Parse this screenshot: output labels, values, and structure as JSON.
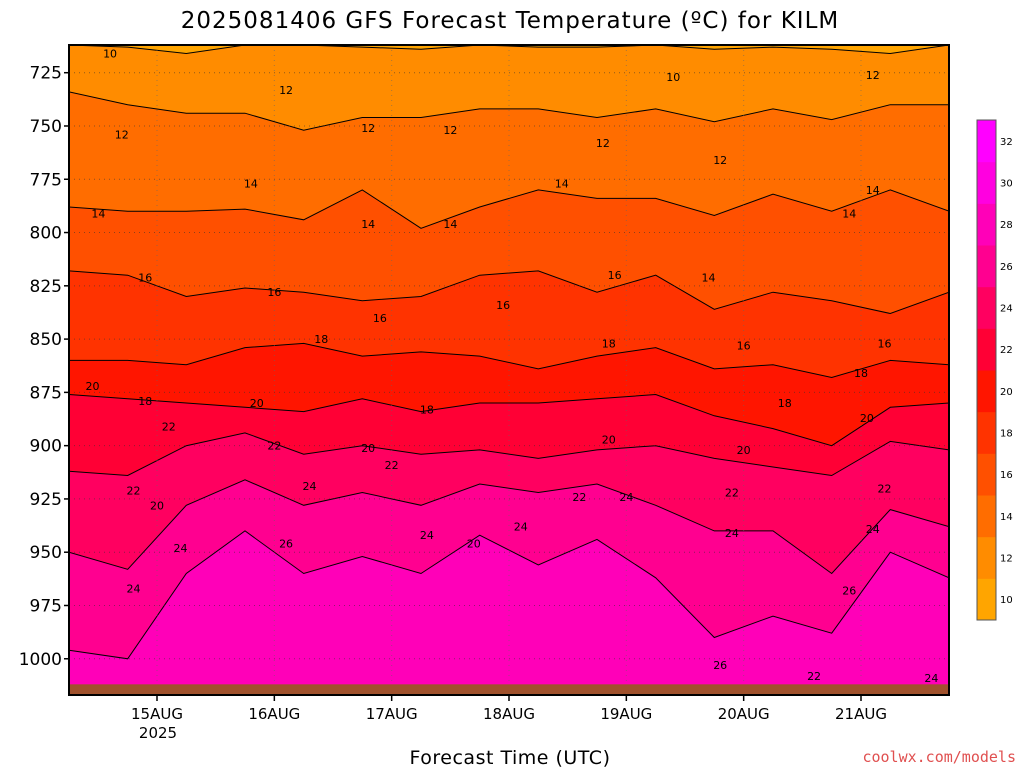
{
  "chart_data": {
    "type": "heatmap",
    "title": "2025081406 GFS Forecast Temperature (ºC) for KILM",
    "xlabel": "Forecast Time (UTC)",
    "ylabel": "",
    "y_axis": {
      "ticks": [
        725,
        750,
        775,
        800,
        825,
        850,
        875,
        900,
        925,
        950,
        975,
        1000
      ],
      "inverted": true,
      "range_hpa": [
        712,
        1017
      ]
    },
    "x_axis": {
      "ticks": [
        "15AUG",
        "16AUG",
        "17AUG",
        "18AUG",
        "19AUG",
        "20AUG",
        "21AUG"
      ],
      "year_label": "2025",
      "range_days": [
        14.25,
        21.75
      ]
    },
    "grid": true,
    "colorbar": {
      "levels": [
        10,
        12,
        14,
        16,
        18,
        20,
        22,
        24,
        26,
        28,
        30,
        32
      ],
      "colors": [
        "#ffa500",
        "#ff8c00",
        "#ff6d00",
        "#ff5000",
        "#ff3300",
        "#ff1500",
        "#ff0035",
        "#ff0060",
        "#ff0090",
        "#ff00b8",
        "#ff00e0",
        "#ff00ff"
      ]
    },
    "isotherms": [
      {
        "value": 10,
        "pressure": [
          712,
          713,
          716,
          712,
          712,
          713,
          714,
          712,
          713,
          713,
          712,
          714,
          713,
          714,
          716,
          712
        ]
      },
      {
        "value": 12,
        "pressure": [
          734,
          740,
          744,
          744,
          752,
          746,
          746,
          742,
          742,
          746,
          742,
          748,
          742,
          747,
          740,
          740
        ]
      },
      {
        "value": 14,
        "pressure": [
          788,
          790,
          790,
          789,
          794,
          780,
          798,
          788,
          780,
          784,
          784,
          792,
          782,
          790,
          780,
          790
        ]
      },
      {
        "value": 16,
        "pressure": [
          818,
          820,
          830,
          826,
          828,
          832,
          830,
          820,
          818,
          828,
          820,
          836,
          828,
          832,
          838,
          828
        ]
      },
      {
        "value": 18,
        "pressure": [
          860,
          860,
          862,
          854,
          852,
          858,
          856,
          858,
          864,
          858,
          854,
          864,
          862,
          868,
          860,
          862
        ]
      },
      {
        "value": 20,
        "pressure": [
          876,
          878,
          880,
          882,
          884,
          878,
          884,
          880,
          880,
          878,
          876,
          886,
          892,
          900,
          882,
          880
        ]
      },
      {
        "value": 22,
        "pressure": [
          912,
          914,
          900,
          894,
          904,
          900,
          904,
          902,
          906,
          902,
          900,
          906,
          910,
          914,
          898,
          902
        ]
      },
      {
        "value": 24,
        "pressure": [
          950,
          958,
          928,
          916,
          928,
          922,
          928,
          918,
          922,
          918,
          928,
          940,
          940,
          960,
          930,
          938
        ]
      },
      {
        "value": 26,
        "pressure": [
          996,
          1000,
          960,
          940,
          960,
          952,
          960,
          942,
          956,
          944,
          962,
          990,
          980,
          988,
          950,
          962
        ]
      }
    ],
    "ground_pressure_hpa": 1012,
    "contour_labels": [
      {
        "text": "10",
        "t": 14.6,
        "p": 716
      },
      {
        "text": "12",
        "t": 14.7,
        "p": 754
      },
      {
        "text": "14",
        "t": 14.5,
        "p": 791
      },
      {
        "text": "16",
        "t": 14.9,
        "p": 821
      },
      {
        "text": "18",
        "t": 14.9,
        "p": 879
      },
      {
        "text": "20",
        "t": 14.45,
        "p": 872
      },
      {
        "text": "22",
        "t": 15.1,
        "p": 891
      },
      {
        "text": "22",
        "t": 14.8,
        "p": 921
      },
      {
        "text": "20",
        "t": 15.0,
        "p": 928
      },
      {
        "text": "24",
        "t": 15.2,
        "p": 948
      },
      {
        "text": "24",
        "t": 14.8,
        "p": 967
      },
      {
        "text": "12",
        "t": 16.1,
        "p": 733
      },
      {
        "text": "14",
        "t": 15.8,
        "p": 777
      },
      {
        "text": "16",
        "t": 16.0,
        "p": 828
      },
      {
        "text": "20",
        "t": 15.85,
        "p": 880
      },
      {
        "text": "22",
        "t": 16.0,
        "p": 900
      },
      {
        "text": "24",
        "t": 16.3,
        "p": 919
      },
      {
        "text": "26",
        "t": 16.1,
        "p": 946
      },
      {
        "text": "18",
        "t": 16.4,
        "p": 850
      },
      {
        "text": "12",
        "t": 16.8,
        "p": 751
      },
      {
        "text": "14",
        "t": 16.8,
        "p": 796
      },
      {
        "text": "16",
        "t": 16.9,
        "p": 840
      },
      {
        "text": "20",
        "t": 16.8,
        "p": 901
      },
      {
        "text": "22",
        "t": 17.0,
        "p": 909
      },
      {
        "text": "24",
        "t": 17.3,
        "p": 942
      },
      {
        "text": "18",
        "t": 17.3,
        "p": 883
      },
      {
        "text": "12",
        "t": 17.5,
        "p": 752
      },
      {
        "text": "14",
        "t": 17.5,
        "p": 796
      },
      {
        "text": "16",
        "t": 17.95,
        "p": 834
      },
      {
        "text": "20",
        "t": 17.7,
        "p": 946
      },
      {
        "text": "24",
        "t": 18.1,
        "p": 938
      },
      {
        "text": "14",
        "t": 18.45,
        "p": 777
      },
      {
        "text": "12",
        "t": 18.8,
        "p": 758
      },
      {
        "text": "16",
        "t": 18.9,
        "p": 820
      },
      {
        "text": "18",
        "t": 18.85,
        "p": 852
      },
      {
        "text": "20",
        "t": 18.85,
        "p": 897
      },
      {
        "text": "22",
        "t": 18.6,
        "p": 924
      },
      {
        "text": "24",
        "t": 19.0,
        "p": 924
      },
      {
        "text": "10",
        "t": 19.4,
        "p": 727
      },
      {
        "text": "12",
        "t": 19.8,
        "p": 766
      },
      {
        "text": "14",
        "t": 19.7,
        "p": 821
      },
      {
        "text": "16",
        "t": 20.0,
        "p": 853
      },
      {
        "text": "18",
        "t": 20.35,
        "p": 880
      },
      {
        "text": "20",
        "t": 20.0,
        "p": 902
      },
      {
        "text": "22",
        "t": 19.9,
        "p": 922
      },
      {
        "text": "24",
        "t": 19.9,
        "p": 941
      },
      {
        "text": "26",
        "t": 19.8,
        "p": 1003
      },
      {
        "text": "22",
        "t": 20.6,
        "p": 1008
      },
      {
        "text": "12",
        "t": 21.1,
        "p": 726
      },
      {
        "text": "14",
        "t": 21.1,
        "p": 780
      },
      {
        "text": "14",
        "t": 20.9,
        "p": 791
      },
      {
        "text": "16",
        "t": 21.2,
        "p": 852
      },
      {
        "text": "18",
        "t": 21.0,
        "p": 866
      },
      {
        "text": "20",
        "t": 21.05,
        "p": 887
      },
      {
        "text": "22",
        "t": 21.2,
        "p": 920
      },
      {
        "text": "24",
        "t": 21.1,
        "p": 939
      },
      {
        "text": "26",
        "t": 20.9,
        "p": 968
      },
      {
        "text": "24",
        "t": 21.6,
        "p": 1009
      }
    ]
  },
  "credit": "coolwx.com/models"
}
